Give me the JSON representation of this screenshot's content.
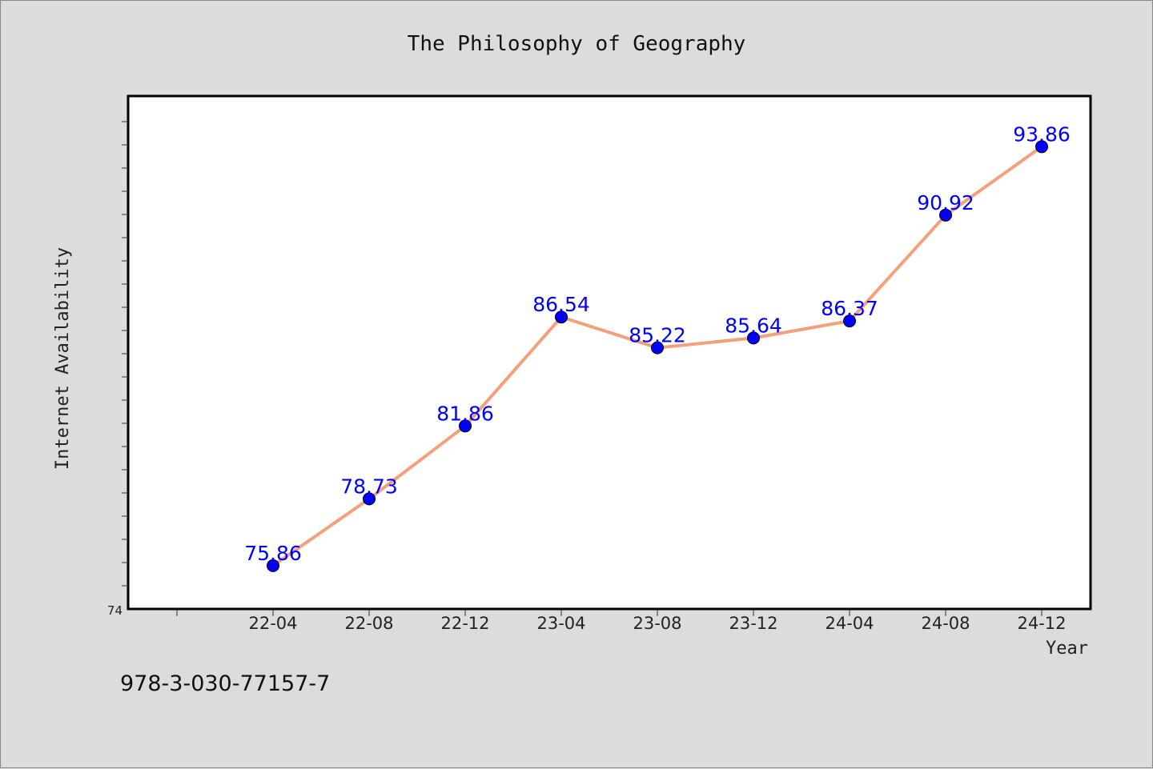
{
  "chart_data": {
    "type": "line",
    "title": "The Philosophy of Geography",
    "xlabel": "Year",
    "ylabel": "Internet Availability",
    "categories": [
      "22-04",
      "22-08",
      "22-12",
      "23-04",
      "23-08",
      "23-12",
      "24-04",
      "24-08",
      "24-12"
    ],
    "series": [
      {
        "values": [
          75.86,
          78.73,
          81.86,
          86.54,
          85.22,
          85.64,
          86.37,
          90.92,
          93.86
        ]
      }
    ],
    "ylim": [
      74,
      96
    ],
    "y_min_label": "74",
    "grid": false,
    "line_color": "#f4a07a",
    "marker_color": "#0000ff",
    "label_color": "#0000ff",
    "plot_background": "#ffffff",
    "page_background": "#dcdcdc"
  },
  "footnote": "978-3-030-77157-7"
}
